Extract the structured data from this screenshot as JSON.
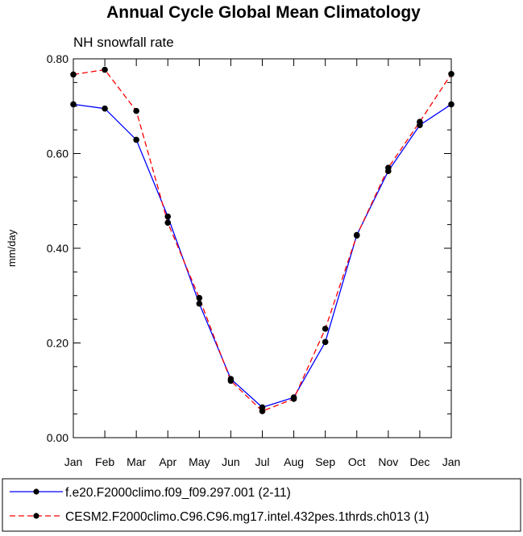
{
  "chart_data": {
    "type": "line",
    "title": "Annual Cycle Global Mean Climatology",
    "subtitle": "NH snowfall rate",
    "xlabel": "",
    "ylabel": "mm/day",
    "categories": [
      "Jan",
      "Feb",
      "Mar",
      "Apr",
      "May",
      "Jun",
      "Jul",
      "Aug",
      "Sep",
      "Oct",
      "Nov",
      "Dec",
      "Jan"
    ],
    "ylim": [
      0.0,
      0.8
    ],
    "yticks": [
      "0.00",
      "0.20",
      "0.40",
      "0.60",
      "0.80"
    ],
    "grid": false,
    "legend_position": "bottom",
    "series": [
      {
        "name": "f.e20.F2000climo.f09_f09.297.001 (2-11)",
        "color": "#0000ff",
        "line_style": "solid",
        "marker": "filled-circle",
        "values": [
          0.704,
          0.695,
          0.629,
          0.467,
          0.283,
          0.124,
          0.064,
          0.085,
          0.202,
          0.428,
          0.563,
          0.66,
          0.704
        ]
      },
      {
        "name": "CESM2.F2000climo.C96.C96.mg17.intel.432pes.1thrds.ch013 (1)",
        "color": "#ff0000",
        "line_style": "dashed",
        "marker": "filled-circle",
        "values": [
          0.767,
          0.777,
          0.69,
          0.454,
          0.295,
          0.12,
          0.056,
          0.082,
          0.23,
          0.427,
          0.57,
          0.667,
          0.768
        ]
      }
    ]
  }
}
